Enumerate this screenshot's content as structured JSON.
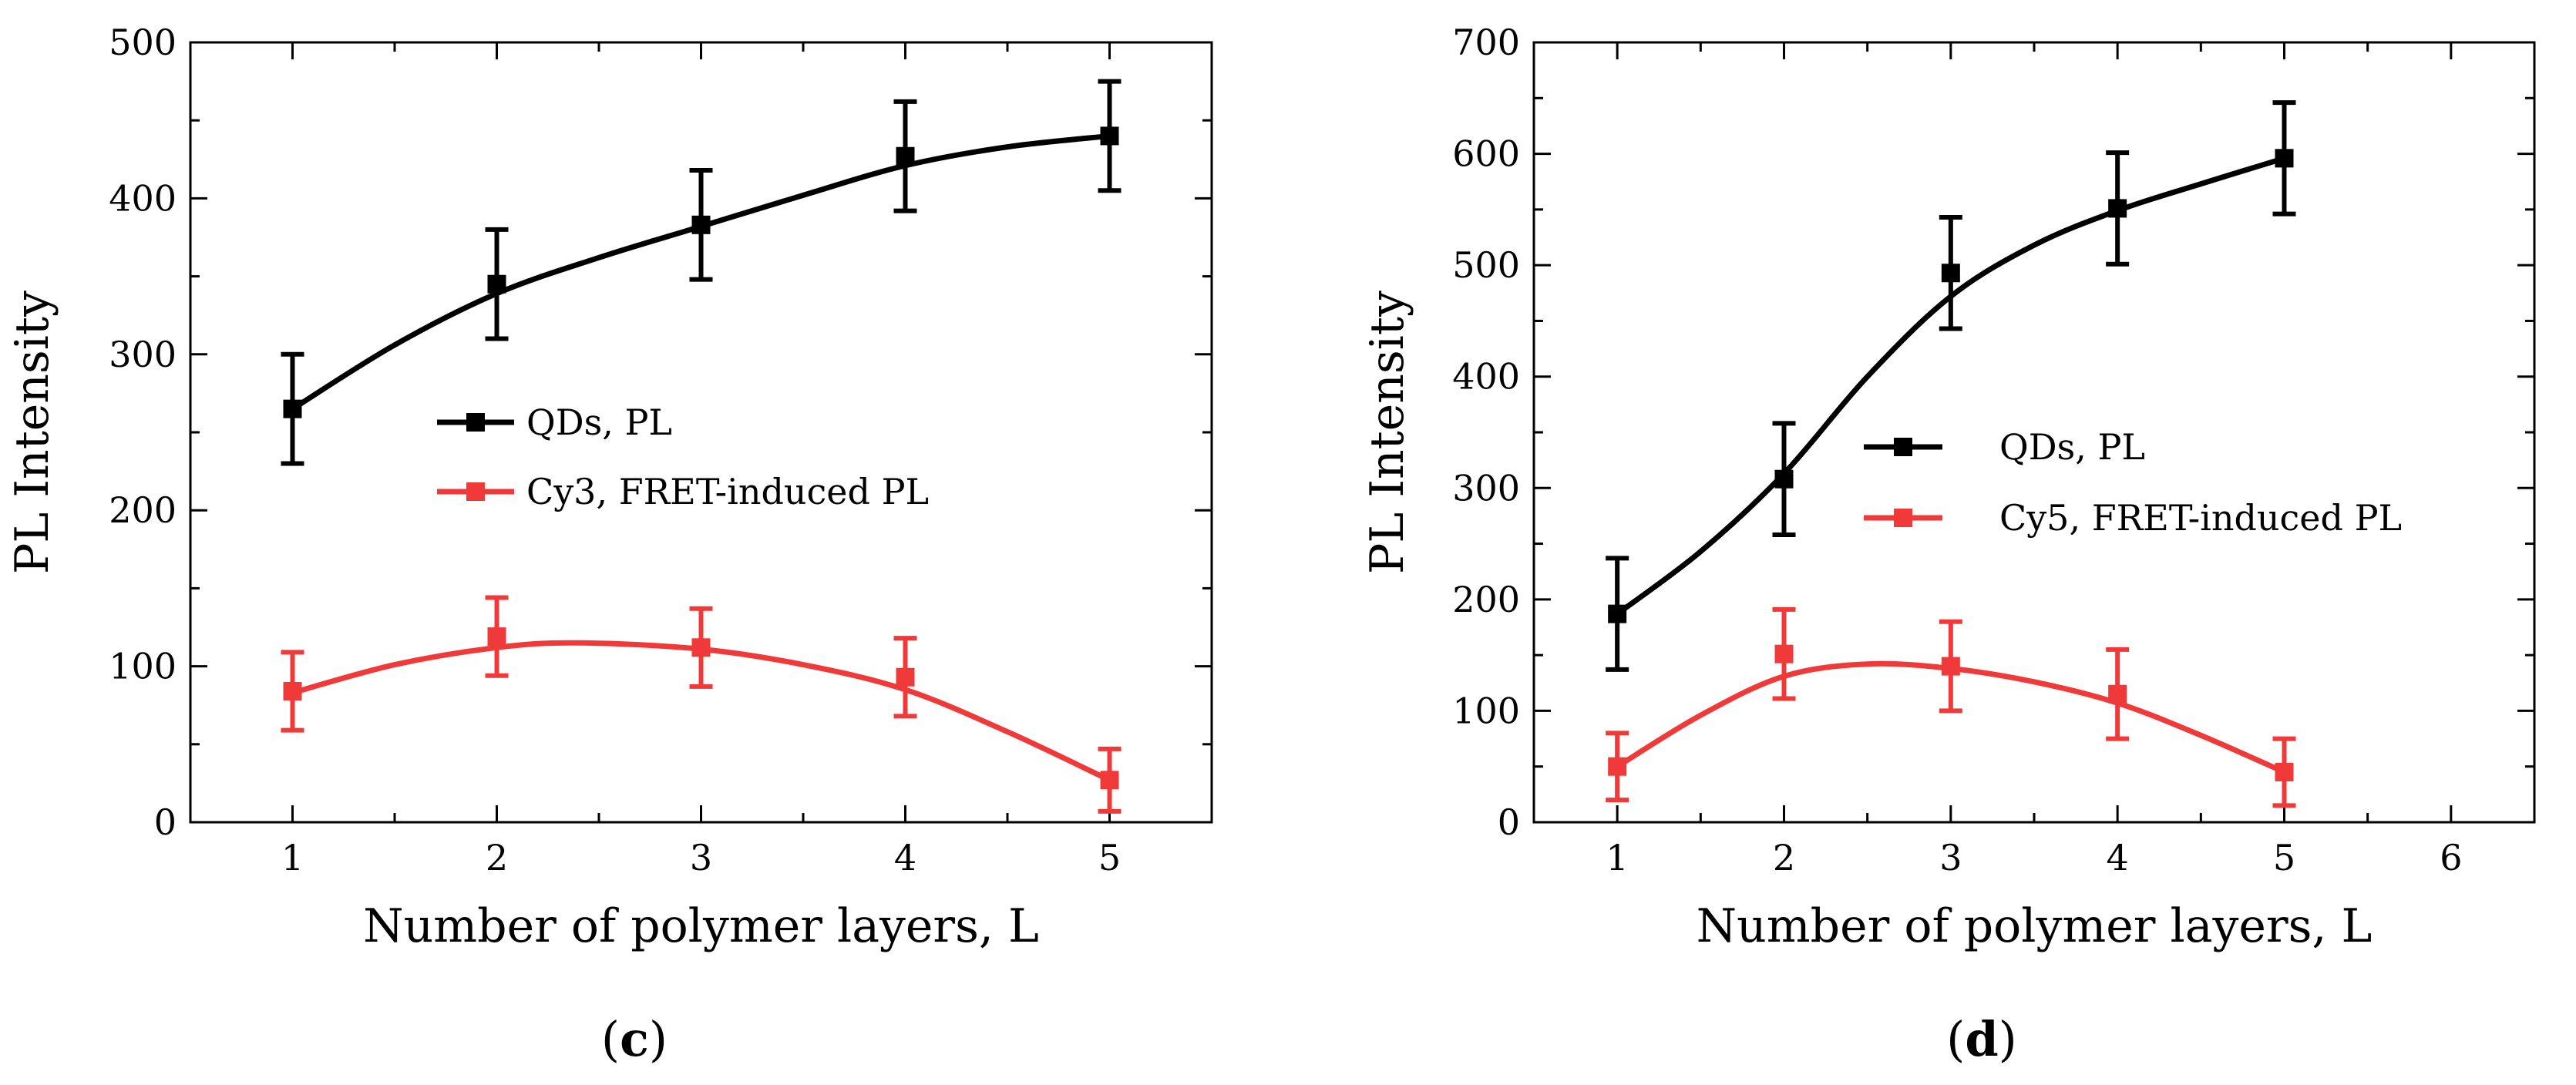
{
  "colors": {
    "qds": "#000000",
    "dye": "#f03a3a",
    "axis": "#000000",
    "background": "#ffffff"
  },
  "chart_data": [
    {
      "type": "line",
      "panel_label": {
        "open": "(",
        "letter": "c",
        "close": ")"
      },
      "xlabel": "Number of polymer layers, L",
      "ylabel": "PL Intensity",
      "xlim": [
        0.5,
        5.5
      ],
      "ylim": [
        0,
        500
      ],
      "xticks": [
        1,
        2,
        3,
        4,
        5
      ],
      "yticks": [
        0,
        100,
        200,
        300,
        400,
        500
      ],
      "legend_position": "center-left",
      "series": [
        {
          "name": "QDs, PL",
          "color_key": "qds",
          "x": [
            1,
            2,
            3,
            4,
            5
          ],
          "values": [
            265,
            345,
            383,
            427,
            440
          ],
          "errors": [
            35,
            35,
            35,
            35,
            35
          ],
          "fit": [
            [
              1,
              265
            ],
            [
              1.5,
              306
            ],
            [
              2,
              339
            ],
            [
              2.5,
              362
            ],
            [
              3,
              382
            ],
            [
              3.5,
              402
            ],
            [
              4,
              421
            ],
            [
              4.5,
              433
            ],
            [
              5,
              440
            ]
          ]
        },
        {
          "name": "Cy3, FRET-induced PL",
          "color_key": "dye",
          "x": [
            1,
            2,
            3,
            4,
            5
          ],
          "values": [
            84,
            119,
            112,
            93,
            27
          ],
          "errors": [
            25,
            25,
            25,
            25,
            20
          ],
          "fit": [
            [
              1,
              83
            ],
            [
              1.5,
              101
            ],
            [
              2,
              112
            ],
            [
              2.4,
              115
            ],
            [
              3,
              111
            ],
            [
              3.5,
              101
            ],
            [
              4,
              85
            ],
            [
              4.5,
              58
            ],
            [
              5,
              27
            ]
          ]
        }
      ]
    },
    {
      "type": "line",
      "panel_label": {
        "open": "(",
        "letter": "d",
        "close": ")"
      },
      "xlabel": "Number of polymer layers, L",
      "ylabel": "PL Intensity",
      "xlim": [
        0.5,
        6.5
      ],
      "ylim": [
        0,
        700
      ],
      "xticks": [
        1,
        2,
        3,
        4,
        5,
        6
      ],
      "yticks": [
        0,
        100,
        200,
        300,
        400,
        500,
        600,
        700
      ],
      "legend_position": "center-right",
      "series": [
        {
          "name": "QDs, PL",
          "color_key": "qds",
          "x": [
            1,
            2,
            3,
            4,
            5
          ],
          "values": [
            187,
            308,
            493,
            551,
            596
          ],
          "errors": [
            50,
            50,
            50,
            50,
            50
          ],
          "fit": [
            [
              1,
              187
            ],
            [
              1.5,
              243
            ],
            [
              2,
              313
            ],
            [
              2.5,
              400
            ],
            [
              3,
              472
            ],
            [
              3.5,
              518
            ],
            [
              4,
              549
            ],
            [
              4.5,
              573
            ],
            [
              5,
              596
            ]
          ]
        },
        {
          "name": "Cy5, FRET-induced PL",
          "color_key": "dye",
          "x": [
            1,
            2,
            3,
            4,
            5
          ],
          "values": [
            50,
            151,
            140,
            115,
            45
          ],
          "errors": [
            30,
            40,
            40,
            40,
            30
          ],
          "fit": [
            [
              1,
              50
            ],
            [
              1.5,
              96
            ],
            [
              2,
              131
            ],
            [
              2.5,
              142
            ],
            [
              3,
              138
            ],
            [
              3.5,
              126
            ],
            [
              4,
              107
            ],
            [
              4.5,
              78
            ],
            [
              5,
              45
            ]
          ]
        }
      ]
    }
  ]
}
